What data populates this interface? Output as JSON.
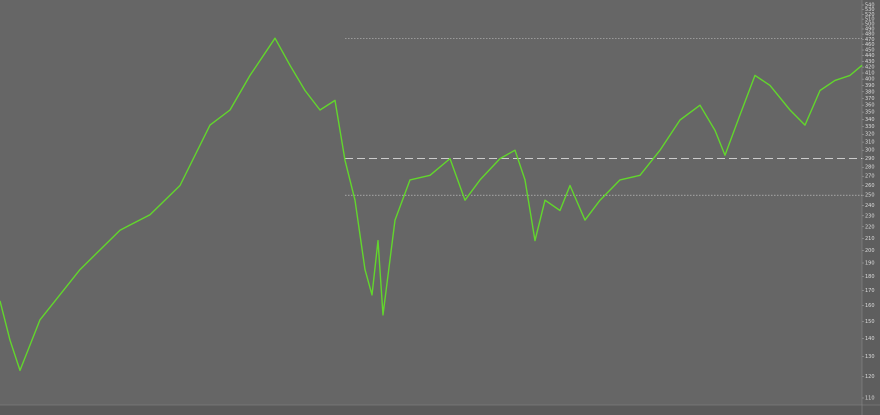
{
  "chart_data": {
    "type": "line",
    "x": [
      0,
      10,
      20,
      40,
      80,
      120,
      150,
      180,
      210,
      230,
      250,
      275,
      290,
      305,
      320,
      335,
      345,
      355,
      365,
      372,
      378,
      383,
      395,
      410,
      430,
      450,
      465,
      480,
      500,
      515,
      525,
      535,
      545,
      560,
      570,
      585,
      600,
      620,
      640,
      660,
      680,
      700,
      715,
      725,
      740,
      755,
      770,
      790,
      805,
      820,
      835,
      850,
      862
    ],
    "series": [
      {
        "color": "#62d62c",
        "values": [
          163,
          139,
          123,
          151,
          185,
          217,
          231,
          260,
          332,
          353,
          406,
          472,
          423,
          382,
          353,
          367,
          288,
          245,
          185,
          167,
          208,
          154,
          226,
          266,
          271,
          290,
          245,
          266,
          290,
          300,
          266,
          208,
          245,
          235,
          260,
          226,
          245,
          266,
          271,
          300,
          339,
          360,
          325,
          294,
          346,
          406,
          390,
          353,
          332,
          382,
          398,
          406,
          423
        ]
      }
    ],
    "xlim": [
      0,
      862
    ],
    "ylim": [
      110,
      540
    ],
    "log_scale": true,
    "yticks": [
      110,
      120,
      130,
      140,
      150,
      160,
      170,
      180,
      190,
      200,
      210,
      220,
      230,
      240,
      250,
      260,
      270,
      280,
      290,
      300,
      310,
      320,
      330,
      340,
      350,
      360,
      370,
      380,
      390,
      400,
      410,
      420,
      430,
      440,
      450,
      460,
      470,
      480,
      490,
      500,
      510,
      520,
      530,
      540
    ],
    "hlines": [
      {
        "value": 472,
        "style": "dotted"
      },
      {
        "value": 290,
        "style": "dashed"
      },
      {
        "value": 250,
        "style": "dotted"
      }
    ]
  }
}
